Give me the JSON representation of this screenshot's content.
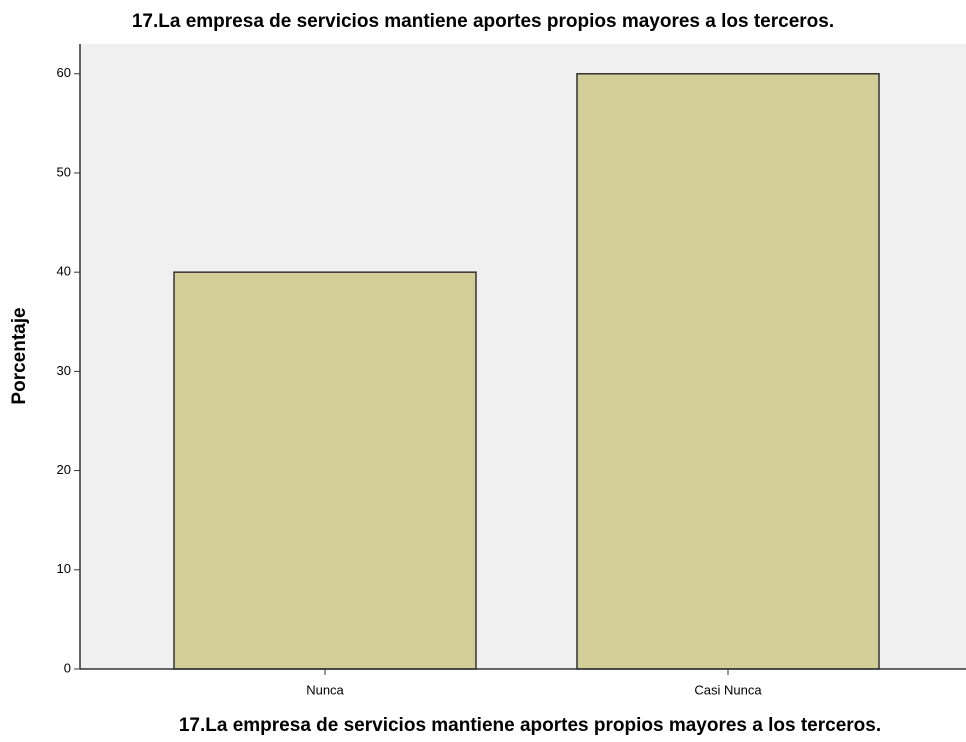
{
  "chart_data": {
    "type": "bar",
    "title": "17.La empresa de servicios mantiene aportes propios mayores a los terceros.",
    "xlabel": "17.La empresa de servicios mantiene aportes propios mayores a los terceros.",
    "ylabel": "Porcentaje",
    "categories": [
      "Nunca",
      "Casi Nunca"
    ],
    "values": [
      40,
      60
    ],
    "color": "#d3ce97",
    "ylim": [
      0,
      63
    ],
    "yticks": [
      0,
      10,
      20,
      30,
      40,
      50,
      60
    ],
    "grid": false
  }
}
